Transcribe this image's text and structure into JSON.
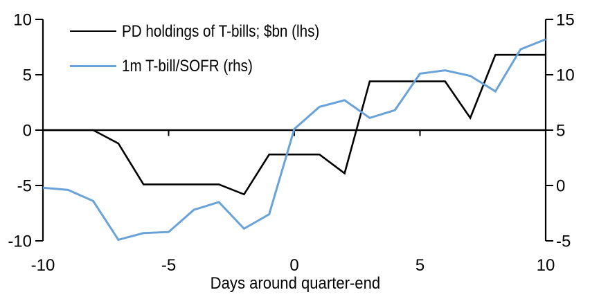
{
  "chart_data": {
    "type": "line",
    "title": "",
    "xlabel": "Days around quarter-end",
    "grid": false,
    "legend_position": "top-left",
    "x": [
      -10,
      -9,
      -8,
      -7,
      -6,
      -5,
      -4,
      -3,
      -2,
      -1,
      0,
      1,
      2,
      3,
      4,
      5,
      6,
      7,
      8,
      9,
      10
    ],
    "series": [
      {
        "name": "PD holdings of T-bills; $bn (lhs)",
        "axis": "left",
        "color": "#000000",
        "values": [
          0,
          0,
          0,
          -1.2,
          -4.9,
          -4.9,
          -4.9,
          -4.9,
          -5.8,
          -2.2,
          -2.2,
          -2.2,
          -3.9,
          4.4,
          4.4,
          4.4,
          4.4,
          1.1,
          6.8,
          6.8,
          6.8
        ]
      },
      {
        "name": "1m T-bill/SOFR (rhs)",
        "axis": "right",
        "color": "#68A2D8",
        "values": [
          -0.2,
          -0.4,
          -1.4,
          -4.9,
          -4.3,
          -4.2,
          -2.2,
          -1.5,
          -3.9,
          -2.6,
          5.1,
          7.1,
          7.7,
          6.1,
          6.8,
          10.1,
          10.4,
          9.9,
          8.5,
          12.3,
          13.2
        ]
      }
    ],
    "left_axis": {
      "ticks": [
        10,
        5,
        0,
        -5,
        -10
      ],
      "range": [
        -10,
        10
      ]
    },
    "right_axis": {
      "ticks": [
        15,
        10,
        5,
        0,
        -5
      ],
      "range": [
        -5,
        15
      ]
    },
    "x_axis": {
      "ticks": [
        -10,
        -5,
        0,
        5,
        10
      ],
      "range": [
        -10,
        10
      ]
    }
  },
  "colors": {
    "axis": "#000000",
    "background": "#ffffff",
    "accent_blue": "#68A2D8"
  }
}
